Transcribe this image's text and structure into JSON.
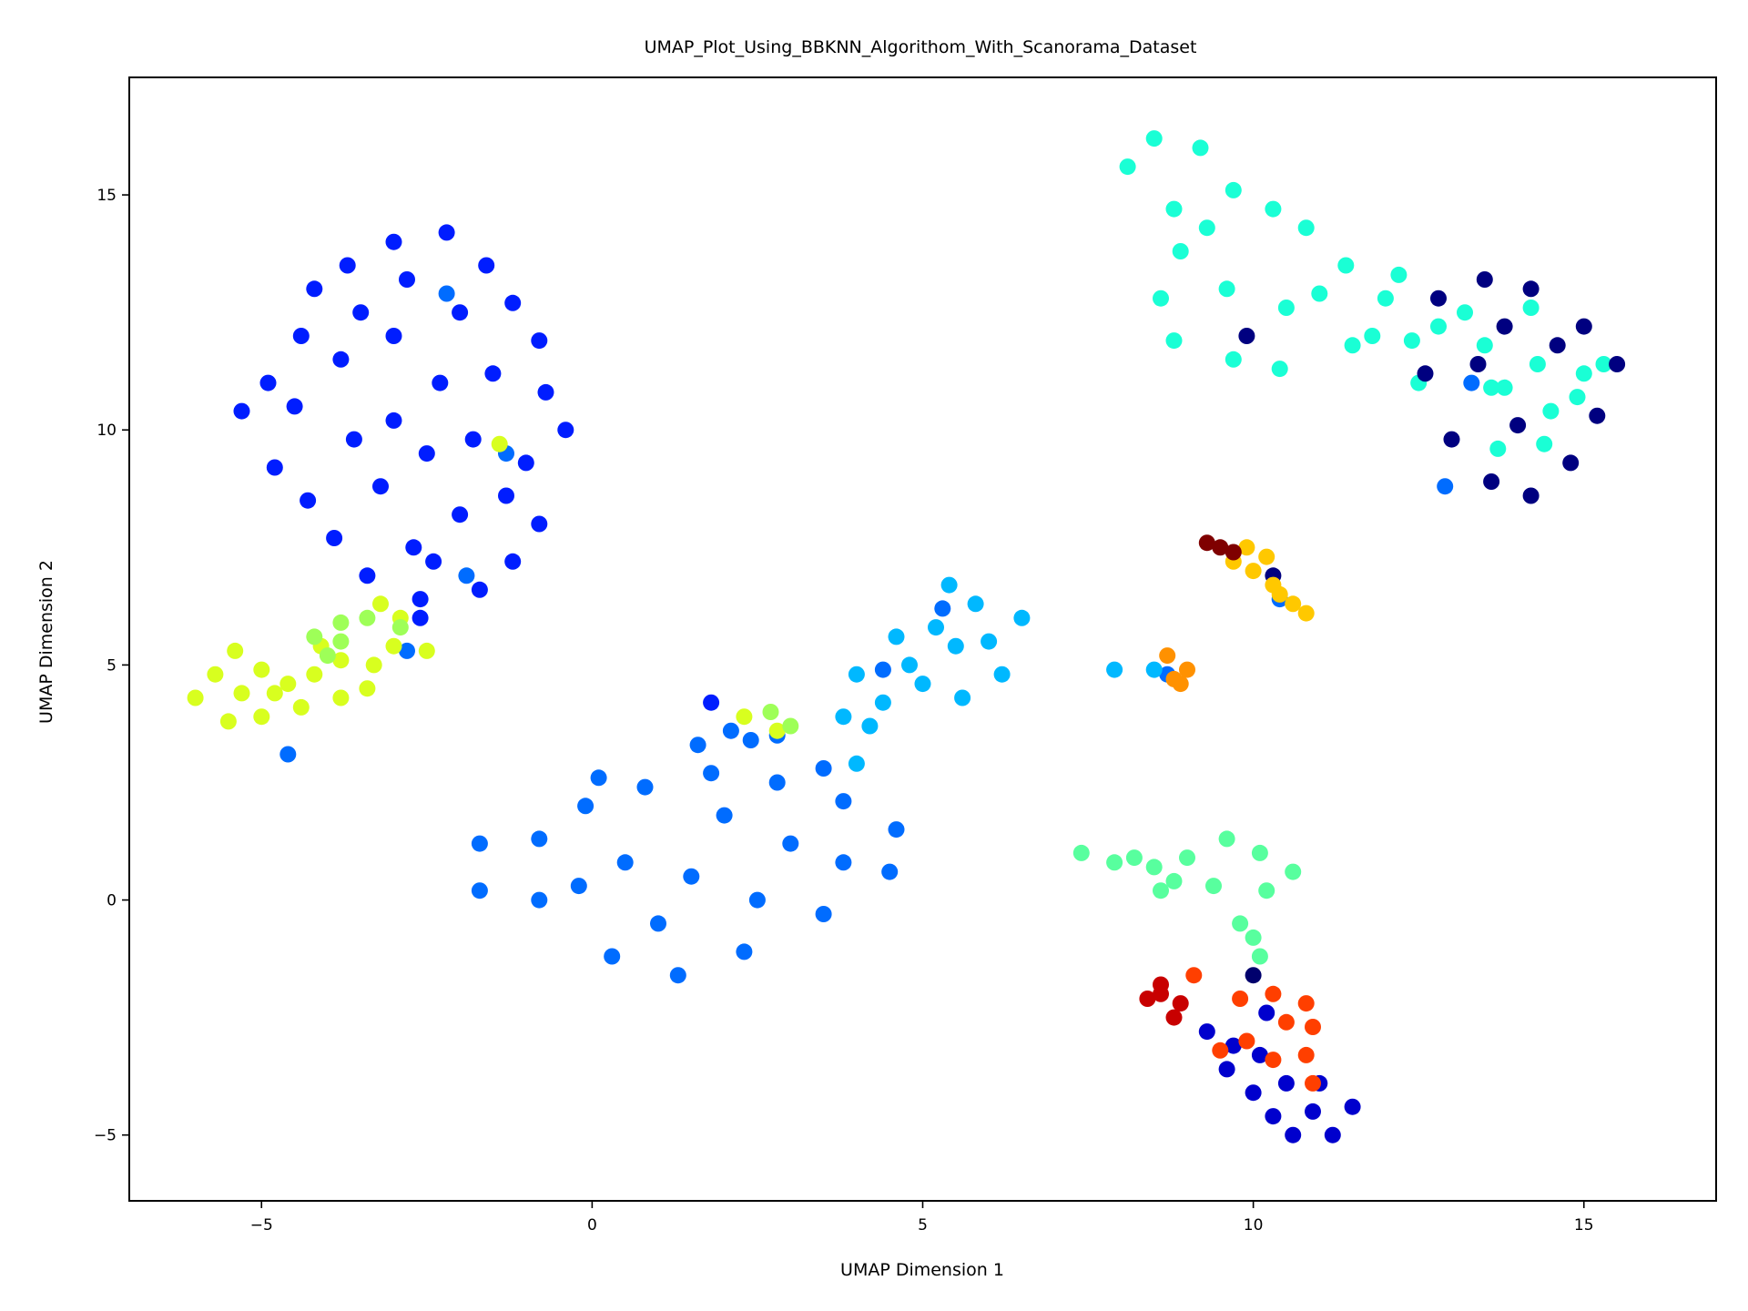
{
  "chart_data": {
    "type": "scatter",
    "title": "UMAP_Plot_Using_BBKNN_Algorithom_With_Scanorama_Dataset",
    "xlabel": "UMAP Dimension 1",
    "ylabel": "UMAP Dimension 2",
    "xlim": [
      -7.0,
      17.0
    ],
    "ylim": [
      -6.4,
      17.5
    ],
    "xticks": [
      -5,
      0,
      5,
      10,
      15
    ],
    "yticks": [
      -5,
      0,
      5,
      10,
      15
    ],
    "xtick_labels": [
      "−5",
      "0",
      "5",
      "10",
      "15"
    ],
    "ytick_labels": [
      "−5",
      "0",
      "5",
      "10",
      "15"
    ],
    "grid": false,
    "legend": "none",
    "clusters": [
      {
        "color": "#001dff",
        "points": [
          [
            -5.3,
            10.4
          ],
          [
            -4.9,
            11.0
          ],
          [
            -4.4,
            12.0
          ],
          [
            -4.2,
            13.0
          ],
          [
            -3.7,
            13.5
          ],
          [
            -3.0,
            14.0
          ],
          [
            -2.2,
            14.2
          ],
          [
            -1.6,
            13.5
          ],
          [
            -1.2,
            12.7
          ],
          [
            -0.8,
            11.9
          ],
          [
            -0.7,
            10.8
          ],
          [
            -0.4,
            10.0
          ],
          [
            -1.0,
            9.3
          ],
          [
            -1.3,
            8.6
          ],
          [
            -0.8,
            8.0
          ],
          [
            -1.2,
            7.2
          ],
          [
            -1.7,
            6.6
          ],
          [
            -2.6,
            6.4
          ],
          [
            -3.4,
            6.9
          ],
          [
            -3.9,
            7.7
          ],
          [
            -4.3,
            8.5
          ],
          [
            -4.8,
            9.2
          ],
          [
            -4.5,
            10.5
          ],
          [
            -3.8,
            11.5
          ],
          [
            -3.5,
            12.5
          ],
          [
            -2.8,
            13.2
          ],
          [
            -2.0,
            12.5
          ],
          [
            -2.3,
            11.0
          ],
          [
            -3.0,
            10.2
          ],
          [
            -2.5,
            9.5
          ],
          [
            -3.2,
            8.8
          ],
          [
            -2.0,
            8.2
          ],
          [
            -2.7,
            7.5
          ],
          [
            -1.8,
            9.8
          ],
          [
            -3.6,
            9.8
          ],
          [
            -1.5,
            11.2
          ],
          [
            -3.0,
            12.0
          ],
          [
            -2.4,
            7.2
          ],
          [
            1.8,
            4.2
          ],
          [
            -2.6,
            6.0
          ]
        ]
      },
      {
        "color": "#006cff",
        "points": [
          [
            -2.2,
            12.9
          ],
          [
            -1.9,
            6.9
          ],
          [
            -2.8,
            5.3
          ],
          [
            -4.6,
            3.1
          ],
          [
            -1.3,
            9.5
          ],
          [
            -0.8,
            1.3
          ],
          [
            -0.2,
            0.3
          ],
          [
            0.3,
            -1.2
          ],
          [
            1.3,
            -1.6
          ],
          [
            2.3,
            -1.1
          ],
          [
            3.5,
            -0.3
          ],
          [
            4.5,
            0.6
          ],
          [
            4.6,
            1.5
          ],
          [
            3.8,
            2.1
          ],
          [
            2.8,
            2.5
          ],
          [
            1.8,
            2.7
          ],
          [
            0.8,
            2.4
          ],
          [
            -0.1,
            2.0
          ],
          [
            -1.7,
            1.2
          ],
          [
            -1.7,
            0.2
          ],
          [
            0.5,
            0.8
          ],
          [
            1.5,
            0.5
          ],
          [
            2.5,
            0.0
          ],
          [
            3.0,
            1.2
          ],
          [
            1.0,
            -0.5
          ],
          [
            2.0,
            1.8
          ],
          [
            -0.8,
            0.0
          ],
          [
            3.8,
            0.8
          ],
          [
            2.4,
            3.4
          ],
          [
            2.1,
            3.6
          ],
          [
            1.6,
            3.3
          ],
          [
            2.8,
            3.5
          ],
          [
            3.5,
            2.8
          ],
          [
            5.3,
            6.2
          ],
          [
            4.4,
            4.9
          ],
          [
            8.7,
            4.8
          ],
          [
            10.4,
            6.4
          ],
          [
            12.9,
            8.8
          ],
          [
            13.3,
            11.0
          ],
          [
            0.1,
            2.6
          ]
        ]
      },
      {
        "color": "#00b8ff",
        "points": [
          [
            3.8,
            3.9
          ],
          [
            4.4,
            4.2
          ],
          [
            4.8,
            5.0
          ],
          [
            5.2,
            5.8
          ],
          [
            5.8,
            6.3
          ],
          [
            6.5,
            6.0
          ],
          [
            6.2,
            4.8
          ],
          [
            5.6,
            4.3
          ],
          [
            5.0,
            4.6
          ],
          [
            4.2,
            3.7
          ],
          [
            5.5,
            5.4
          ],
          [
            4.6,
            5.6
          ],
          [
            6.0,
            5.5
          ],
          [
            4.0,
            4.8
          ],
          [
            7.9,
            4.9
          ],
          [
            8.5,
            4.9
          ],
          [
            4.0,
            2.9
          ],
          [
            5.4,
            6.7
          ]
        ]
      },
      {
        "color": "#1affd5",
        "points": [
          [
            8.1,
            15.6
          ],
          [
            8.5,
            16.2
          ],
          [
            9.2,
            16.0
          ],
          [
            9.7,
            15.1
          ],
          [
            10.3,
            14.7
          ],
          [
            10.8,
            14.3
          ],
          [
            11.4,
            13.5
          ],
          [
            12.0,
            12.8
          ],
          [
            12.8,
            12.2
          ],
          [
            13.5,
            11.8
          ],
          [
            14.3,
            11.4
          ],
          [
            15.0,
            11.2
          ],
          [
            14.5,
            10.4
          ],
          [
            13.8,
            10.9
          ],
          [
            13.2,
            12.5
          ],
          [
            12.4,
            11.9
          ],
          [
            11.5,
            11.8
          ],
          [
            10.4,
            11.3
          ],
          [
            9.7,
            11.5
          ],
          [
            8.8,
            11.9
          ],
          [
            8.6,
            12.8
          ],
          [
            8.9,
            13.8
          ],
          [
            8.8,
            14.7
          ],
          [
            9.6,
            13.0
          ],
          [
            10.5,
            12.6
          ],
          [
            11.0,
            12.9
          ],
          [
            9.3,
            14.3
          ],
          [
            14.4,
            9.7
          ],
          [
            13.7,
            9.6
          ],
          [
            14.2,
            12.6
          ],
          [
            15.3,
            11.4
          ],
          [
            14.9,
            10.7
          ],
          [
            12.5,
            11.0
          ],
          [
            13.6,
            10.9
          ],
          [
            11.8,
            12.0
          ],
          [
            12.2,
            13.3
          ]
        ]
      },
      {
        "color": "#000080",
        "points": [
          [
            12.8,
            12.8
          ],
          [
            13.5,
            13.2
          ],
          [
            14.2,
            13.0
          ],
          [
            15.0,
            12.2
          ],
          [
            15.5,
            11.4
          ],
          [
            15.2,
            10.3
          ],
          [
            14.8,
            9.3
          ],
          [
            14.2,
            8.6
          ],
          [
            13.6,
            8.9
          ],
          [
            13.0,
            9.8
          ],
          [
            12.6,
            11.2
          ],
          [
            13.4,
            11.4
          ],
          [
            14.0,
            10.1
          ],
          [
            14.6,
            11.8
          ],
          [
            13.8,
            12.2
          ],
          [
            9.9,
            12.0
          ],
          [
            10.3,
            6.9
          ]
        ]
      },
      {
        "color": "#d8ff1f",
        "points": [
          [
            -6.0,
            4.3
          ],
          [
            -5.7,
            4.8
          ],
          [
            -5.4,
            5.3
          ],
          [
            -5.0,
            4.9
          ],
          [
            -4.6,
            4.6
          ],
          [
            -4.2,
            4.8
          ],
          [
            -3.8,
            5.1
          ],
          [
            -3.3,
            5.0
          ],
          [
            -3.0,
            5.4
          ],
          [
            -3.4,
            4.5
          ],
          [
            -3.8,
            4.3
          ],
          [
            -4.4,
            4.1
          ],
          [
            -5.0,
            3.9
          ],
          [
            -5.5,
            3.8
          ],
          [
            -5.3,
            4.4
          ],
          [
            -4.8,
            4.4
          ],
          [
            -4.1,
            5.4
          ],
          [
            -2.9,
            6.0
          ],
          [
            -1.4,
            9.7
          ],
          [
            -2.5,
            5.3
          ],
          [
            2.8,
            3.6
          ],
          [
            2.3,
            3.9
          ],
          [
            -3.2,
            6.3
          ]
        ]
      },
      {
        "color": "#9eff58",
        "points": [
          [
            -4.2,
            5.6
          ],
          [
            -3.8,
            5.9
          ],
          [
            -3.4,
            6.0
          ],
          [
            -3.8,
            5.5
          ],
          [
            -4.0,
            5.2
          ],
          [
            -2.9,
            5.8
          ],
          [
            2.7,
            4.0
          ],
          [
            3.0,
            3.7
          ]
        ]
      },
      {
        "color": "#58ff9e",
        "points": [
          [
            8.5,
            0.7
          ],
          [
            9.0,
            0.9
          ],
          [
            9.6,
            1.3
          ],
          [
            10.1,
            1.0
          ],
          [
            10.6,
            0.6
          ],
          [
            10.2,
            0.2
          ],
          [
            10.0,
            -0.8
          ],
          [
            9.8,
            -0.5
          ],
          [
            9.4,
            0.3
          ],
          [
            8.8,
            0.4
          ],
          [
            7.4,
            1.0
          ],
          [
            7.9,
            0.8
          ],
          [
            8.2,
            0.9
          ],
          [
            8.6,
            0.2
          ],
          [
            10.1,
            -1.2
          ]
        ]
      },
      {
        "color": "#00006d",
        "points": [
          [
            10.0,
            -1.6
          ]
        ]
      },
      {
        "color": "#0000cd",
        "points": [
          [
            9.3,
            -2.8
          ],
          [
            9.6,
            -3.6
          ],
          [
            10.0,
            -4.1
          ],
          [
            10.3,
            -4.6
          ],
          [
            10.6,
            -5.0
          ],
          [
            11.2,
            -5.0
          ],
          [
            11.5,
            -4.4
          ],
          [
            11.0,
            -3.9
          ],
          [
            10.5,
            -3.9
          ],
          [
            10.1,
            -3.3
          ],
          [
            9.7,
            -3.1
          ],
          [
            10.9,
            -4.5
          ],
          [
            10.2,
            -2.4
          ]
        ]
      },
      {
        "color": "#ff3f00",
        "points": [
          [
            9.8,
            -2.1
          ],
          [
            10.3,
            -2.0
          ],
          [
            10.8,
            -2.2
          ],
          [
            10.9,
            -2.7
          ],
          [
            10.8,
            -3.3
          ],
          [
            10.3,
            -3.4
          ],
          [
            9.9,
            -3.0
          ],
          [
            10.5,
            -2.6
          ],
          [
            9.1,
            -1.6
          ],
          [
            10.9,
            -3.9
          ],
          [
            9.5,
            -3.2
          ]
        ]
      },
      {
        "color": "#c80000",
        "points": [
          [
            8.6,
            -2.0
          ],
          [
            8.9,
            -2.2
          ],
          [
            8.6,
            -1.8
          ],
          [
            8.8,
            -2.5
          ],
          [
            8.4,
            -2.1
          ]
        ]
      },
      {
        "color": "#ff9100",
        "points": [
          [
            8.8,
            4.7
          ],
          [
            9.0,
            4.9
          ],
          [
            8.7,
            5.2
          ],
          [
            8.9,
            4.6
          ]
        ]
      },
      {
        "color": "#ffc800",
        "points": [
          [
            9.7,
            7.2
          ],
          [
            10.0,
            7.0
          ],
          [
            10.3,
            6.7
          ],
          [
            10.6,
            6.3
          ],
          [
            10.8,
            6.1
          ],
          [
            9.9,
            7.5
          ],
          [
            10.2,
            7.3
          ],
          [
            10.4,
            6.5
          ]
        ]
      },
      {
        "color": "#7f0000",
        "points": [
          [
            9.3,
            7.6
          ],
          [
            9.5,
            7.5
          ],
          [
            9.7,
            7.4
          ]
        ]
      }
    ]
  }
}
